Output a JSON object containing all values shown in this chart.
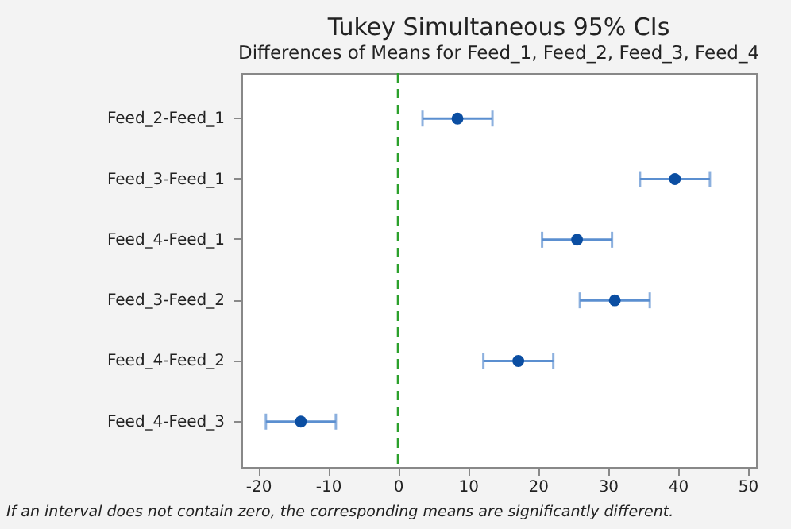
{
  "chart_data": {
    "type": "scatter",
    "orientation": "horizontal",
    "title": "Tukey Simultaneous 95% CIs",
    "subtitle": "Differences of Means for Feed_1, Feed_2, Feed_3, Feed_4",
    "categories": [
      "Feed_2-Feed_1",
      "Feed_3-Feed_1",
      "Feed_4-Feed_1",
      "Feed_3-Feed_2",
      "Feed_4-Feed_2",
      "Feed_4-Feed_3"
    ],
    "series": [
      {
        "color": "#0b4ea2",
        "values": [
          8.5,
          39.6,
          25.6,
          31.0,
          17.2,
          -13.9
        ],
        "errors": [
          5.0,
          5.0,
          5.0,
          5.0,
          5.0,
          5.0
        ]
      }
    ],
    "xlim": [
      -22.4,
      51.2
    ],
    "xticks": [
      -20,
      -10,
      0,
      10,
      20,
      30,
      40,
      50
    ],
    "ref_lines": [
      {
        "axis": "x",
        "value": 0,
        "color": "#2ca02c",
        "line_style": "dashed"
      }
    ],
    "annotations": [
      "If an interval does not contain zero, the corresponding means are significantly different."
    ],
    "grid": false,
    "marker": "circle"
  }
}
